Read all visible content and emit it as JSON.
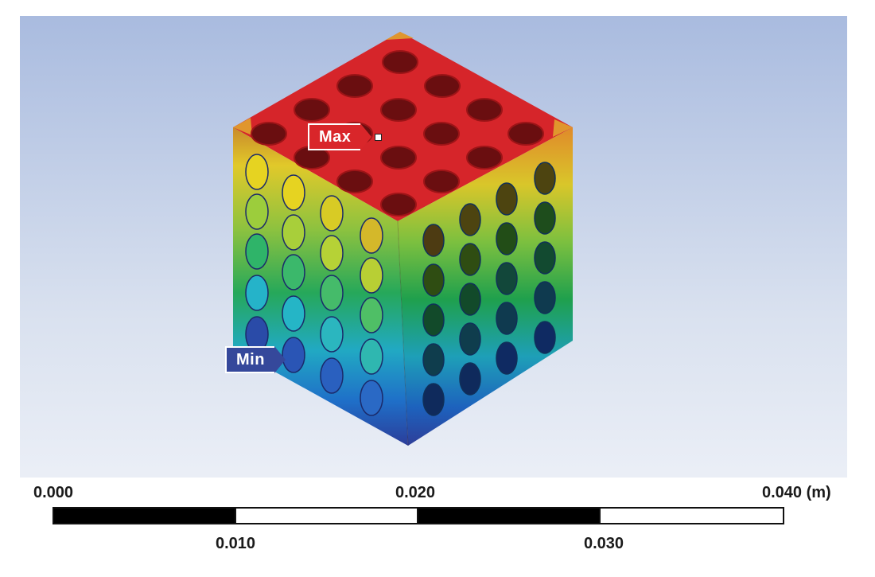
{
  "viewport": {
    "background_top": "#a9bbdf",
    "background_bottom": "#f3f5fa"
  },
  "model": {
    "contour_colors": [
      "#35489b",
      "#1f7fcf",
      "#20b2c8",
      "#24a84a",
      "#8cc63f",
      "#e6d321",
      "#e89a20",
      "#d9262a"
    ],
    "probes": {
      "max_label": "Max",
      "min_label": "Min",
      "max_color": "#d9262a",
      "min_color": "#35489b"
    }
  },
  "scale": {
    "top_labels": [
      "0.000",
      "0.020",
      "0.040 (m)"
    ],
    "bottom_labels": [
      "0.010",
      "0.030"
    ]
  }
}
